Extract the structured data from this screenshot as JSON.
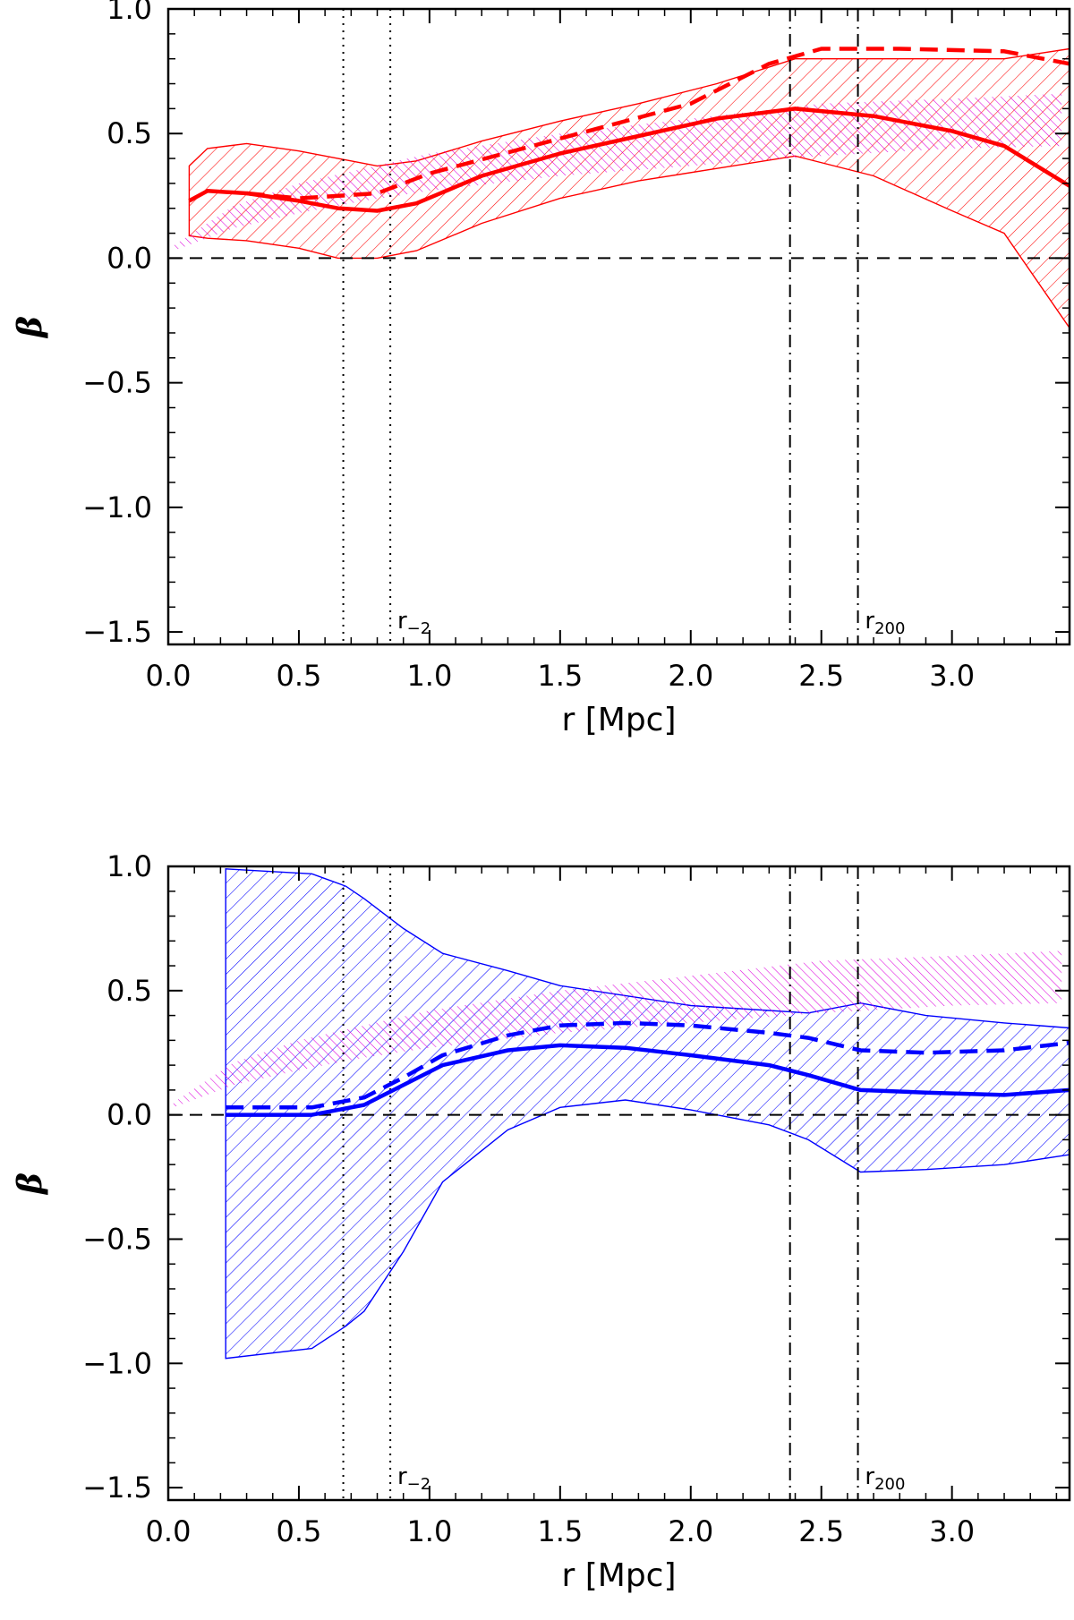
{
  "chart_data": [
    {
      "type": "line",
      "panel": "top",
      "xlabel": "r [Mpc]",
      "ylabel": "β",
      "xlim": [
        0.0,
        3.45
      ],
      "ylim": [
        -1.55,
        1.0
      ],
      "xticks": [
        "0.0",
        "0.5",
        "1.0",
        "1.5",
        "2.0",
        "2.5",
        "3.0"
      ],
      "yticks": [
        "1.0",
        "0.5",
        "0.0",
        "−0.5",
        "−1.0",
        "−1.5"
      ],
      "color": "#ff0000",
      "band_color": "#dd00dd",
      "series": [
        {
          "style": "solid-thick",
          "x": [
            0.08,
            0.15,
            0.3,
            0.5,
            0.65,
            0.8,
            0.95,
            1.2,
            1.5,
            1.8,
            2.1,
            2.4,
            2.7,
            3.0,
            3.2,
            3.45
          ],
          "values": [
            0.23,
            0.27,
            0.26,
            0.23,
            0.2,
            0.19,
            0.22,
            0.33,
            0.42,
            0.49,
            0.56,
            0.6,
            0.57,
            0.51,
            0.45,
            0.29
          ]
        },
        {
          "style": "dashed-thick",
          "x": [
            0.3,
            0.5,
            0.8,
            1.0,
            1.5,
            2.0,
            2.3,
            2.5,
            2.8,
            3.2,
            3.45
          ],
          "values": [
            0.26,
            0.24,
            0.26,
            0.34,
            0.48,
            0.62,
            0.78,
            0.84,
            0.84,
            0.83,
            0.78
          ]
        }
      ],
      "band": {
        "x": [
          0.08,
          0.15,
          0.3,
          0.5,
          0.65,
          0.7,
          0.8,
          0.95,
          1.2,
          1.5,
          1.8,
          2.1,
          2.4,
          2.7,
          3.0,
          3.2,
          3.45
        ],
        "upper": [
          0.37,
          0.44,
          0.46,
          0.43,
          0.4,
          0.39,
          0.37,
          0.39,
          0.47,
          0.55,
          0.62,
          0.7,
          0.8,
          0.8,
          0.8,
          0.8,
          0.84
        ],
        "lower": [
          0.09,
          0.08,
          0.07,
          0.04,
          0.0,
          0.0,
          0.0,
          0.03,
          0.14,
          0.24,
          0.31,
          0.36,
          0.41,
          0.33,
          0.19,
          0.1,
          -0.28
        ]
      },
      "reference_band": {
        "x": [
          0.02,
          0.25,
          0.5,
          0.75,
          1.0,
          1.5,
          2.0,
          2.5,
          3.0,
          3.42
        ],
        "upper": [
          0.05,
          0.21,
          0.3,
          0.36,
          0.42,
          0.5,
          0.56,
          0.62,
          0.64,
          0.66
        ],
        "lower": [
          0.03,
          0.12,
          0.18,
          0.23,
          0.27,
          0.33,
          0.37,
          0.41,
          0.44,
          0.45
        ]
      },
      "hlines": [
        0.0
      ],
      "vlines_dotted": [
        0.67,
        0.85
      ],
      "vlines_dashdot": [
        2.38,
        2.64
      ],
      "annotations": [
        {
          "x": 0.87,
          "text": "r",
          "sub": "−2"
        },
        {
          "x": 2.66,
          "text": "r",
          "sub": "200"
        }
      ]
    },
    {
      "type": "line",
      "panel": "bottom",
      "xlabel": "r [Mpc]",
      "ylabel": "β",
      "xlim": [
        0.0,
        3.45
      ],
      "ylim": [
        -1.55,
        1.0
      ],
      "xticks": [
        "0.0",
        "0.5",
        "1.0",
        "1.5",
        "2.0",
        "2.5",
        "3.0"
      ],
      "yticks": [
        "1.0",
        "0.5",
        "0.0",
        "−0.5",
        "−1.0",
        "−1.5"
      ],
      "color": "#0000ff",
      "band_color": "#dd00dd",
      "series": [
        {
          "style": "solid-thick",
          "x": [
            0.22,
            0.55,
            0.75,
            0.9,
            1.05,
            1.3,
            1.5,
            1.75,
            2.0,
            2.3,
            2.45,
            2.65,
            2.9,
            3.2,
            3.45
          ],
          "values": [
            0.0,
            0.0,
            0.04,
            0.12,
            0.2,
            0.26,
            0.28,
            0.27,
            0.24,
            0.2,
            0.16,
            0.1,
            0.09,
            0.08,
            0.1
          ]
        },
        {
          "style": "dashed-thick",
          "x": [
            0.22,
            0.55,
            0.75,
            0.9,
            1.05,
            1.3,
            1.5,
            1.75,
            2.0,
            2.3,
            2.45,
            2.65,
            2.9,
            3.2,
            3.45
          ],
          "values": [
            0.03,
            0.03,
            0.07,
            0.15,
            0.24,
            0.32,
            0.36,
            0.37,
            0.36,
            0.33,
            0.31,
            0.26,
            0.25,
            0.26,
            0.29
          ]
        }
      ],
      "band": {
        "x": [
          0.22,
          0.55,
          0.68,
          0.75,
          0.9,
          1.05,
          1.3,
          1.5,
          1.75,
          2.0,
          2.3,
          2.45,
          2.65,
          2.9,
          3.2,
          3.45
        ],
        "upper": [
          0.99,
          0.97,
          0.92,
          0.87,
          0.75,
          0.65,
          0.58,
          0.52,
          0.48,
          0.44,
          0.42,
          0.41,
          0.45,
          0.4,
          0.37,
          0.35
        ],
        "lower": [
          -0.98,
          -0.94,
          -0.85,
          -0.79,
          -0.55,
          -0.27,
          -0.06,
          0.03,
          0.06,
          0.02,
          -0.04,
          -0.1,
          -0.23,
          -0.22,
          -0.2,
          -0.16
        ]
      },
      "reference_band": {
        "x": [
          0.02,
          0.25,
          0.5,
          0.75,
          1.0,
          1.5,
          2.0,
          2.5,
          3.0,
          3.42
        ],
        "upper": [
          0.05,
          0.21,
          0.3,
          0.36,
          0.42,
          0.5,
          0.56,
          0.62,
          0.64,
          0.66
        ],
        "lower": [
          0.03,
          0.12,
          0.18,
          0.23,
          0.27,
          0.33,
          0.37,
          0.41,
          0.44,
          0.45
        ]
      },
      "hlines": [
        0.0
      ],
      "vlines_dotted": [
        0.67,
        0.85
      ],
      "vlines_dashdot": [
        2.38,
        2.64
      ],
      "annotations": [
        {
          "x": 0.87,
          "text": "r",
          "sub": "−2"
        },
        {
          "x": 2.66,
          "text": "r",
          "sub": "200"
        }
      ]
    }
  ]
}
